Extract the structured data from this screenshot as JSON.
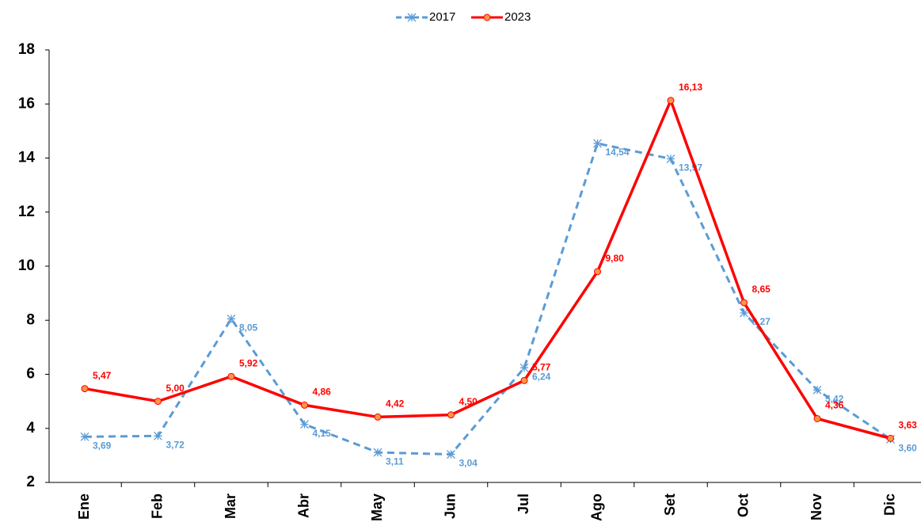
{
  "chart_data": {
    "type": "line",
    "categories": [
      "Ene",
      "Feb",
      "Mar",
      "Abr",
      "May",
      "Jun",
      "Jul",
      "Ago",
      "Set",
      "Oct",
      "Nov",
      "Dic"
    ],
    "series": [
      {
        "name": "2017",
        "color": "#5b9bd5",
        "values": [
          3.69,
          3.72,
          8.05,
          4.15,
          3.11,
          3.04,
          6.24,
          14.54,
          13.97,
          8.27,
          5.42,
          3.6
        ],
        "value_labels": [
          "3,69",
          "3,72",
          "8,05",
          "4,15",
          "3,11",
          "3,04",
          "6,24",
          "14,54",
          "13,97",
          "8,27",
          "5,42",
          "3,60"
        ]
      },
      {
        "name": "2023",
        "color": "#ff0000",
        "values": [
          5.47,
          5.0,
          5.92,
          4.86,
          4.42,
          4.5,
          5.77,
          9.8,
          16.13,
          8.65,
          4.36,
          3.63
        ],
        "value_labels": [
          "5,47",
          "5,00",
          "5,92",
          "4,86",
          "4,42",
          "4,50",
          "5,77",
          "9,80",
          "16,13",
          "8,65",
          "4,36",
          "3,63"
        ]
      }
    ],
    "ylim": [
      2,
      18
    ],
    "yticks": [
      2,
      4,
      6,
      8,
      10,
      12,
      14,
      16,
      18
    ],
    "grid": false,
    "legend": "top"
  }
}
